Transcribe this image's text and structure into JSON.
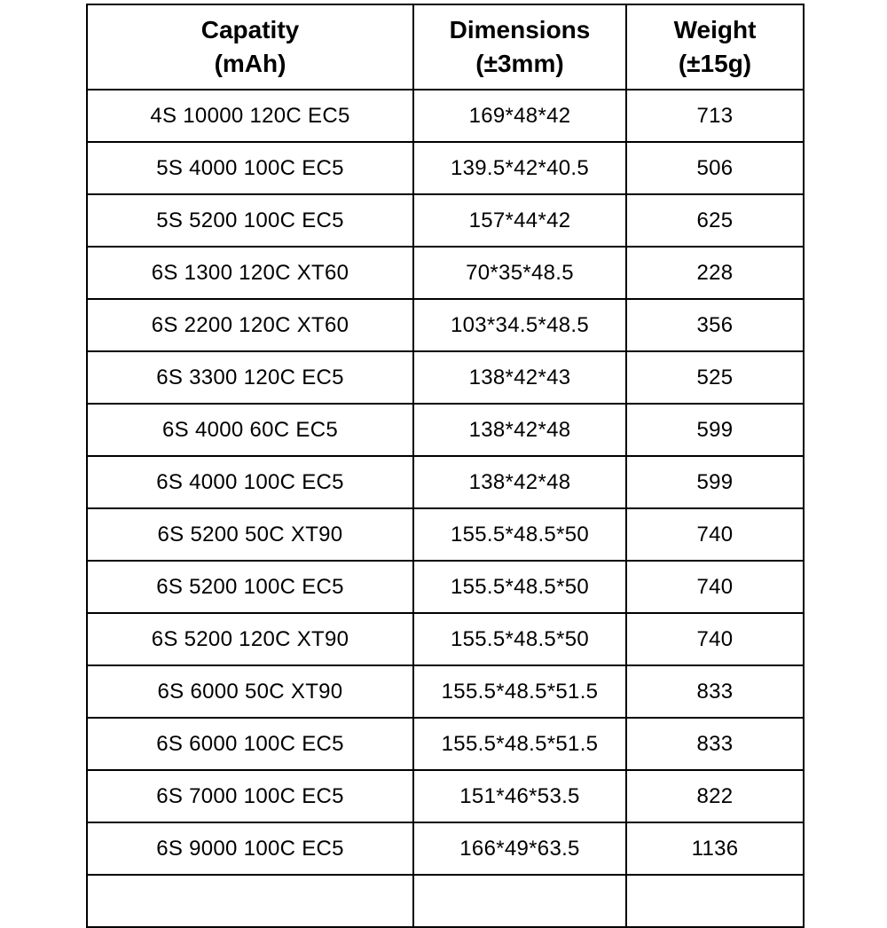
{
  "table": {
    "headers": {
      "capacity": "Capatity\n(mAh)",
      "dimensions": "Dimensions\n(±3mm)",
      "weight": "Weight\n(±15g)"
    },
    "rows": [
      {
        "capacity": "4S 10000 120C EC5",
        "dimensions": "169*48*42",
        "weight": "713"
      },
      {
        "capacity": "5S 4000 100C EC5",
        "dimensions": "139.5*42*40.5",
        "weight": "506"
      },
      {
        "capacity": "5S 5200 100C EC5",
        "dimensions": "157*44*42",
        "weight": "625"
      },
      {
        "capacity": "6S 1300 120C XT60",
        "dimensions": "70*35*48.5",
        "weight": "228"
      },
      {
        "capacity": "6S 2200 120C XT60",
        "dimensions": "103*34.5*48.5",
        "weight": "356"
      },
      {
        "capacity": "6S 3300 120C EC5",
        "dimensions": "138*42*43",
        "weight": "525"
      },
      {
        "capacity": "6S 4000 60C EC5",
        "dimensions": "138*42*48",
        "weight": "599"
      },
      {
        "capacity": "6S 4000 100C EC5",
        "dimensions": "138*42*48",
        "weight": "599"
      },
      {
        "capacity": "6S 5200 50C XT90",
        "dimensions": "155.5*48.5*50",
        "weight": "740"
      },
      {
        "capacity": "6S 5200 100C EC5",
        "dimensions": "155.5*48.5*50",
        "weight": "740"
      },
      {
        "capacity": "6S 5200 120C XT90",
        "dimensions": "155.5*48.5*50",
        "weight": "740"
      },
      {
        "capacity": "6S 6000 50C XT90",
        "dimensions": "155.5*48.5*51.5",
        "weight": "833"
      },
      {
        "capacity": "6S 6000 100C EC5",
        "dimensions": "155.5*48.5*51.5",
        "weight": "833"
      },
      {
        "capacity": "6S 7000 100C EC5",
        "dimensions": "151*46*53.5",
        "weight": "822"
      },
      {
        "capacity": "6S 9000 100C EC5",
        "dimensions": "166*49*63.5",
        "weight": "1136"
      }
    ]
  }
}
